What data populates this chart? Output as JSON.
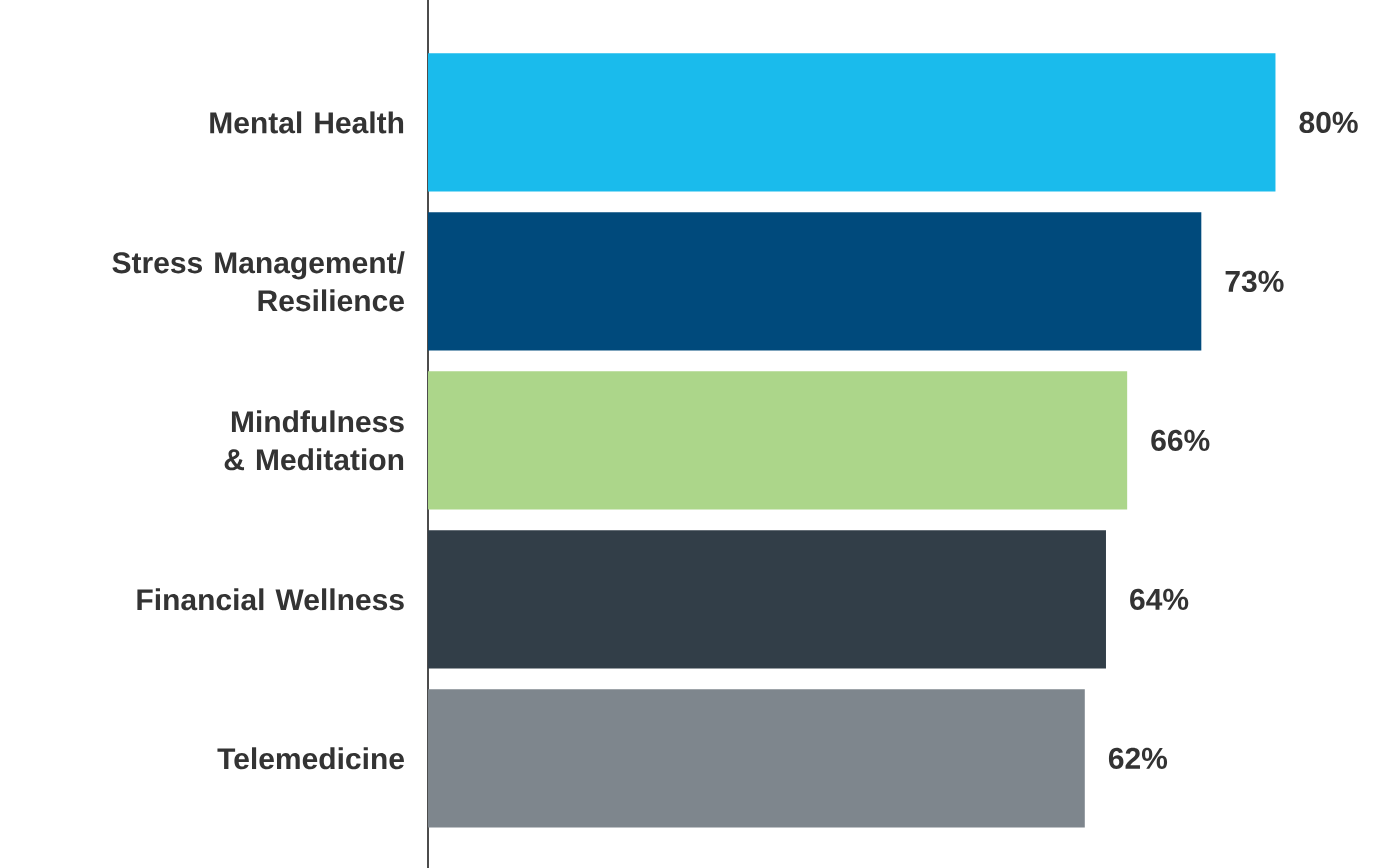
{
  "chart_data": {
    "type": "bar",
    "orientation": "horizontal",
    "categories": [
      "Mental Health",
      "Stress Management/ Resilience",
      "Mindfulness & Meditation",
      "Financial Wellness",
      "Telemedicine"
    ],
    "values": [
      80,
      73,
      66,
      64,
      62
    ],
    "value_labels": [
      "80%",
      "73%",
      "66%",
      "64%",
      "62%"
    ],
    "colors": [
      "#1abbec",
      "#004a7c",
      "#acd68a",
      "#323e48",
      "#7e868d"
    ]
  }
}
